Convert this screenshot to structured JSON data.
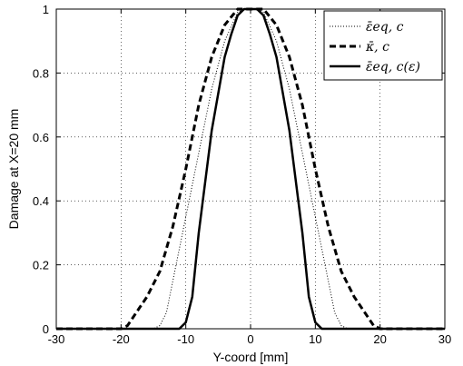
{
  "chart_data": {
    "type": "line",
    "title": "",
    "xlabel": "Y-coord [mm]",
    "ylabel": "Damage at X=20 mm",
    "xlim": [
      -30,
      30
    ],
    "ylim": [
      0,
      1
    ],
    "xticks": [
      -30,
      -20,
      -10,
      0,
      10,
      20,
      30
    ],
    "yticks": [
      0,
      0.2,
      0.4,
      0.6,
      0.8,
      1
    ],
    "xtick_labels": [
      "-30",
      "-20",
      "-10",
      "0",
      "10",
      "20",
      "30"
    ],
    "ytick_labels": [
      "0",
      "0.2",
      "0.4",
      "0.6",
      "0.8",
      "1"
    ],
    "grid": true,
    "legend_position": "top-right",
    "series": [
      {
        "name": "ε̄eq,  c",
        "style": "dotted",
        "color": "#000000",
        "x": [
          -30,
          -15,
          -14,
          -13,
          -12,
          -10,
          -8,
          -6,
          -4,
          -2,
          -1,
          0,
          1,
          2,
          4,
          6,
          8,
          10,
          12,
          13,
          14,
          15,
          30
        ],
        "y": [
          0,
          0,
          0.01,
          0.05,
          0.15,
          0.35,
          0.55,
          0.75,
          0.9,
          0.99,
          1,
          1,
          1,
          0.99,
          0.9,
          0.75,
          0.55,
          0.35,
          0.15,
          0.05,
          0.01,
          0,
          0
        ]
      },
      {
        "name": "κ̄,  c",
        "style": "dashed",
        "color": "#000000",
        "x": [
          -30,
          -20,
          -19,
          -18,
          -16,
          -14,
          -12,
          -10,
          -8,
          -6,
          -4,
          -2,
          -1,
          0,
          1,
          2,
          4,
          6,
          8,
          10,
          12,
          14,
          16,
          18,
          19,
          20,
          30
        ],
        "y": [
          0,
          0,
          0.01,
          0.04,
          0.1,
          0.18,
          0.32,
          0.5,
          0.7,
          0.85,
          0.95,
          1,
          1,
          1,
          1,
          1,
          0.95,
          0.85,
          0.7,
          0.5,
          0.32,
          0.18,
          0.1,
          0.04,
          0.01,
          0,
          0
        ]
      },
      {
        "name": "ε̄eq,  c(ε)",
        "style": "solid",
        "color": "#000000",
        "x": [
          -30,
          -11,
          -10,
          -9,
          -8,
          -6,
          -4,
          -3,
          -2,
          -1,
          0,
          1,
          2,
          3,
          4,
          6,
          8,
          9,
          10,
          11,
          30
        ],
        "y": [
          0,
          0,
          0.02,
          0.1,
          0.3,
          0.62,
          0.85,
          0.92,
          0.98,
          1,
          1,
          1,
          0.98,
          0.92,
          0.85,
          0.62,
          0.3,
          0.1,
          0.02,
          0,
          0
        ]
      }
    ]
  }
}
